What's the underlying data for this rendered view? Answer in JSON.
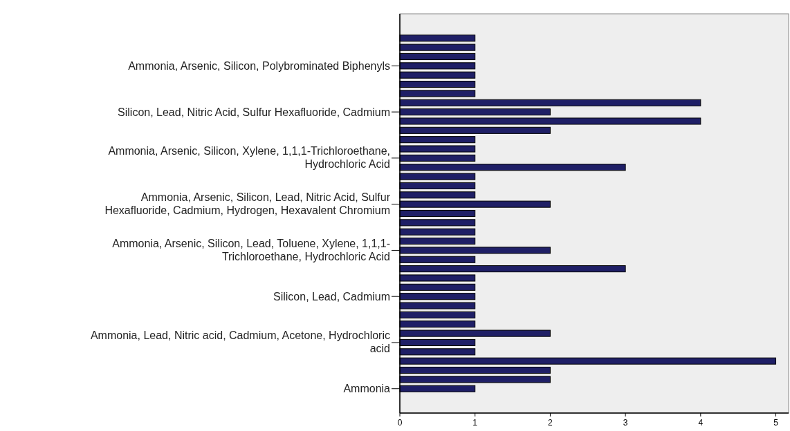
{
  "chart_data": {
    "type": "bar",
    "orientation": "horizontal",
    "categories": [
      null,
      null,
      null,
      "Ammonia, Arsenic, Silicon, Polybrominated Biphenyls",
      null,
      null,
      null,
      null,
      "Silicon, Lead, Nitric Acid, Sulfur Hexafluoride, Cadmium",
      null,
      null,
      null,
      null,
      "Ammonia, Arsenic, Silicon, Xylene, 1,1,1-Trichloroethane, Hydrochloric Acid",
      null,
      null,
      null,
      null,
      "Ammonia, Arsenic, Silicon, Lead, Nitric Acid, Sulfur Hexafluoride, Cadmium, Hydrogen, Hexavalent Chromium",
      null,
      null,
      null,
      null,
      "Ammonia, Arsenic, Silicon, Lead, Toluene, Xylene, 1,1,1-Trichloroethane, Hydrochloric Acid",
      null,
      null,
      null,
      null,
      "Silicon, Lead, Cadmium",
      null,
      null,
      null,
      null,
      "Ammonia, Lead, Nitric acid, Cadmium, Acetone, Hydrochloric acid",
      null,
      null,
      null,
      null,
      "Ammonia"
    ],
    "values": [
      1,
      1,
      1,
      1,
      1,
      1,
      1,
      4,
      2,
      4,
      2,
      1,
      1,
      1,
      3,
      1,
      1,
      1,
      2,
      1,
      1,
      1,
      1,
      2,
      1,
      3,
      1,
      1,
      1,
      1,
      1,
      1,
      2,
      1,
      1,
      5,
      2,
      2,
      1
    ],
    "color": "#1f1f66",
    "xlim": [
      0,
      5.17
    ],
    "xticks": [
      0,
      1,
      2,
      3,
      4,
      5
    ],
    "grid": false
  }
}
